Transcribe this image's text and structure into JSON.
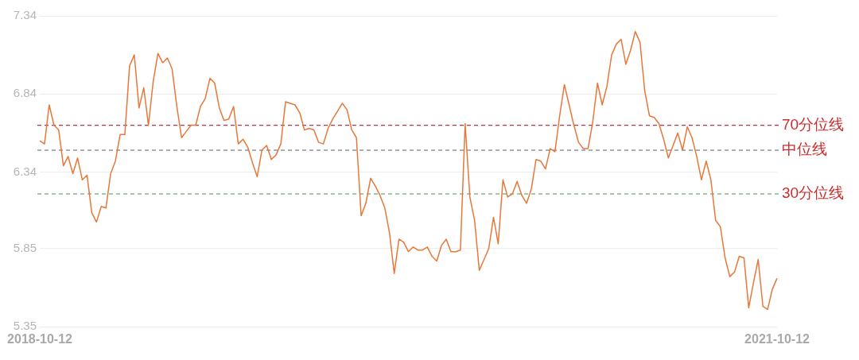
{
  "chart_data": {
    "type": "line",
    "categories": [
      "2018-10-12",
      null,
      null,
      null,
      null,
      null,
      null,
      null,
      null,
      null,
      null,
      null,
      null,
      null,
      null,
      null,
      null,
      null,
      null,
      null,
      null,
      null,
      null,
      null,
      null,
      null,
      null,
      null,
      null,
      null,
      null,
      null,
      null,
      null,
      null,
      null,
      null,
      null,
      null,
      null,
      null,
      null,
      null,
      null,
      null,
      null,
      null,
      null,
      null,
      null,
      null,
      null,
      null,
      null,
      null,
      null,
      null,
      null,
      null,
      null,
      null,
      null,
      null,
      null,
      null,
      null,
      null,
      null,
      null,
      null,
      null,
      null,
      null,
      null,
      null,
      null,
      null,
      null,
      null,
      null,
      null,
      null,
      null,
      null,
      null,
      null,
      null,
      null,
      null,
      null,
      null,
      null,
      null,
      null,
      null,
      null,
      null,
      null,
      null,
      null,
      null,
      null,
      null,
      null,
      null,
      null,
      null,
      null,
      null,
      null,
      null,
      null,
      null,
      null,
      null,
      null,
      null,
      null,
      null,
      null,
      null,
      null,
      null,
      null,
      null,
      null,
      null,
      null,
      null,
      null,
      null,
      null,
      null,
      null,
      null,
      null,
      null,
      null,
      null,
      null,
      null,
      null,
      null,
      null,
      null,
      null,
      null,
      null,
      null,
      null,
      null,
      null,
      null,
      null,
      null,
      null,
      "2021-10-12"
    ],
    "series": [
      {
        "color": "#e8773a",
        "values": [
          6.54,
          6.52,
          6.77,
          6.64,
          6.61,
          6.38,
          6.44,
          6.33,
          6.43,
          6.29,
          6.32,
          6.08,
          6.02,
          6.12,
          6.11,
          6.33,
          6.41,
          6.58,
          6.58,
          7.02,
          7.09,
          6.75,
          6.88,
          6.64,
          6.92,
          7.1,
          7.04,
          7.07,
          7.0,
          6.76,
          6.56,
          6.6,
          6.64,
          6.64,
          6.76,
          6.81,
          6.94,
          6.91,
          6.75,
          6.67,
          6.68,
          6.76,
          6.52,
          6.55,
          6.5,
          6.4,
          6.31,
          6.48,
          6.51,
          6.42,
          6.45,
          6.52,
          6.79,
          6.78,
          6.77,
          6.72,
          6.61,
          6.62,
          6.61,
          6.53,
          6.52,
          6.62,
          6.68,
          6.73,
          6.78,
          6.74,
          6.61,
          6.56,
          6.06,
          6.14,
          6.3,
          6.25,
          6.19,
          6.11,
          5.95,
          5.69,
          5.91,
          5.89,
          5.83,
          5.86,
          5.84,
          5.84,
          5.86,
          5.8,
          5.77,
          5.87,
          5.91,
          5.83,
          5.83,
          5.84,
          6.65,
          6.18,
          6.03,
          5.71,
          5.78,
          5.85,
          6.05,
          5.88,
          6.29,
          6.18,
          6.2,
          6.28,
          6.19,
          6.14,
          6.23,
          6.42,
          6.41,
          6.36,
          6.49,
          6.47,
          6.7,
          6.9,
          6.77,
          6.64,
          6.53,
          6.49,
          6.49,
          6.66,
          6.91,
          6.77,
          6.89,
          7.09,
          7.16,
          7.19,
          7.03,
          7.12,
          7.24,
          7.17,
          6.86,
          6.7,
          6.69,
          6.65,
          6.55,
          6.43,
          6.51,
          6.59,
          6.48,
          6.63,
          6.56,
          6.44,
          6.29,
          6.41,
          6.29,
          6.03,
          5.99,
          5.79,
          5.67,
          5.7,
          5.8,
          5.79,
          5.47,
          5.63,
          5.78,
          5.48,
          5.46,
          5.59,
          5.66
        ]
      }
    ],
    "ylim": [
      5.35,
      7.34
    ],
    "yticks": [
      5.35,
      5.85,
      6.34,
      6.84,
      7.34
    ],
    "grid": "y",
    "marker": "none",
    "ref_lines": [
      {
        "axis": "y",
        "value": 6.64,
        "label": "70分位线",
        "color": "#b8334a",
        "line_style": "dashed"
      },
      {
        "axis": "y",
        "value": 6.48,
        "label": "中位线",
        "color": "#5c5c6e",
        "line_style": "dashed"
      },
      {
        "axis": "y",
        "value": 6.2,
        "label": "30分位线",
        "color": "#3d9a4f",
        "line_style": "dashed"
      }
    ]
  }
}
